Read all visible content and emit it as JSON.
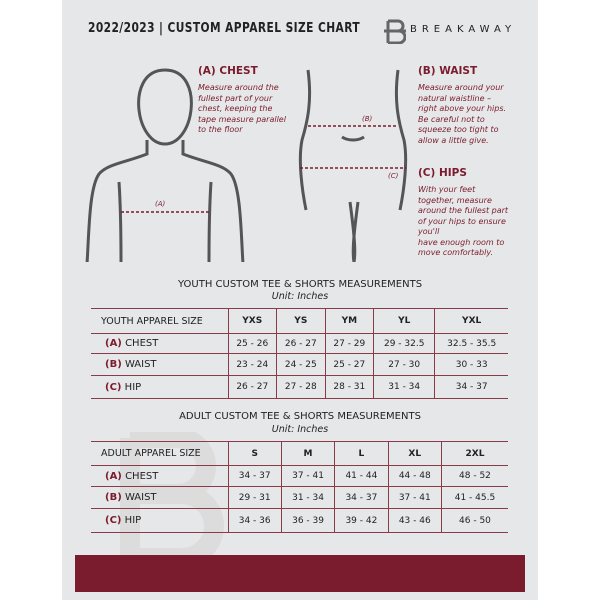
{
  "header": {
    "title": "2022/2023  |  CUSTOM APPAREL SIZE CHART",
    "brand": "BREAKAWAY",
    "logo_letter": "B"
  },
  "measure": {
    "chest": {
      "heading": "(A) CHEST",
      "desc": [
        "Measure around the",
        "fullest part of your",
        "chest, keeping the",
        "tape measure parallel",
        "to the floor"
      ],
      "marker": "(A)"
    },
    "waist": {
      "heading": "(B) WAIST",
      "desc": [
        "Measure around your",
        "natural waistline –",
        "right above your hips.",
        "Be careful not to",
        "squeeze too tight to",
        "allow a little give."
      ],
      "marker": "(B)"
    },
    "hips": {
      "heading": "(C) HIPS",
      "desc": [
        "With your feet",
        "together, measure",
        "around the fullest part",
        "of your hips to ensure",
        "you'll",
        "have enough room to",
        "move comfortably."
      ],
      "marker": "(C)"
    }
  },
  "youth": {
    "heading": "YOUTH CUSTOM TEE & SHORTS MEASUREMENTS",
    "unit": "Unit: Inches",
    "label": "YOUTH APPAREL SIZE",
    "sizes": [
      "YXS",
      "YS",
      "YM",
      "YL",
      "YXL"
    ],
    "rows": [
      {
        "code": "(A)",
        "name": "CHEST",
        "values": [
          "25 - 26",
          "26 - 27",
          "27 - 29",
          "29 - 32.5",
          "32.5 - 35.5"
        ]
      },
      {
        "code": "(B)",
        "name": "WAIST",
        "values": [
          "23 - 24",
          "24 - 25",
          "25 - 27",
          "27 - 30",
          "30 - 33"
        ]
      },
      {
        "code": "(C)",
        "name": "HIP",
        "values": [
          "26 - 27",
          "27 - 28",
          "28 - 31",
          "31 - 34",
          "34 - 37"
        ]
      }
    ]
  },
  "adult": {
    "heading": "ADULT CUSTOM TEE & SHORTS MEASUREMENTS",
    "unit": "Unit: Inches",
    "label": "ADULT APPAREL SIZE",
    "sizes": [
      "S",
      "M",
      "L",
      "XL",
      "2XL"
    ],
    "rows": [
      {
        "code": "(A)",
        "name": "CHEST",
        "values": [
          "34 - 37",
          "37 - 41",
          "41 - 44",
          "44 - 48",
          "48 - 52"
        ]
      },
      {
        "code": "(B)",
        "name": "WAIST",
        "values": [
          "29 - 31",
          "31 - 34",
          "34 - 37",
          "37 - 41",
          "41 - 45.5"
        ]
      },
      {
        "code": "(C)",
        "name": "HIP",
        "values": [
          "34 - 36",
          "36 - 39",
          "39 - 42",
          "43 - 46",
          "46 - 50"
        ]
      }
    ]
  },
  "colors": {
    "accent": "#7a1c2e",
    "background": "#e6e7e8"
  }
}
